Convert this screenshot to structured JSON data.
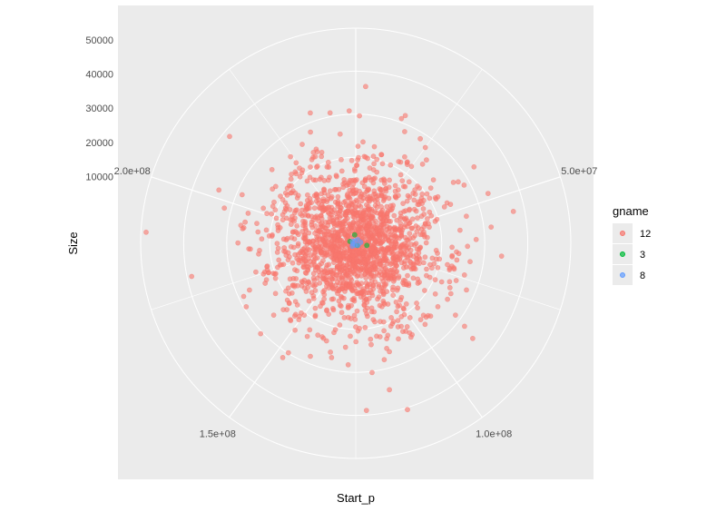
{
  "chart_data": {
    "type": "scatter",
    "coord": "polar",
    "xlabel": "Start_p",
    "ylabel": "Size",
    "theta_ticks": [
      "5.0e+07",
      "1.0e+08",
      "1.5e+08",
      "2.0e+08"
    ],
    "theta_tick_values": [
      50000000,
      100000000,
      150000000,
      200000000
    ],
    "theta_lim": [
      0,
      250000000
    ],
    "r_ticks": [
      "10000",
      "20000",
      "30000",
      "40000",
      "50000"
    ],
    "r_tick_values": [
      10000,
      20000,
      30000,
      40000,
      50000
    ],
    "r_lim": [
      0,
      63000
    ],
    "grid": true,
    "background": "#ebebeb",
    "point_alpha": 0.6,
    "legend": {
      "title": "gname",
      "position": "right",
      "entries": [
        {
          "label": "12",
          "color": "#f8766d"
        },
        {
          "label": "3",
          "color": "#00ba38"
        },
        {
          "label": "8",
          "color": "#619cff"
        }
      ]
    },
    "series": [
      {
        "name": "12",
        "color": "#f8766d",
        "points": [
          {
            "x": 2500000,
            "y": 46000
          },
          {
            "x": 22000000,
            "y": 36000
          },
          {
            "x": 28000000,
            "y": 32000
          },
          {
            "x": 47000000,
            "y": 30000
          },
          {
            "x": 41000000,
            "y": 35000
          },
          {
            "x": 8000000,
            "y": 26000
          },
          {
            "x": 237000000,
            "y": 25000
          },
          {
            "x": 52000000,
            "y": 22000
          },
          {
            "x": 69000000,
            "y": 30000
          },
          {
            "x": 68000000,
            "y": 28500
          },
          {
            "x": 80000000,
            "y": 30500
          },
          {
            "x": 116000000,
            "y": 44000
          },
          {
            "x": 113000000,
            "y": 51000
          },
          {
            "x": 119000000,
            "y": 30000
          },
          {
            "x": 125000000,
            "y": 24500
          },
          {
            "x": 171000000,
            "y": 29000
          },
          {
            "x": 195000000,
            "y": 33000
          },
          {
            "x": 171000000,
            "y": 34000
          },
          {
            "x": 157000000,
            "y": 28000
          },
          {
            "x": 167000000,
            "y": 21000
          },
          {
            "x": 185000000,
            "y": 21000
          },
          {
            "x": 206000000,
            "y": 23000
          },
          {
            "x": 215000000,
            "y": 18000
          },
          {
            "x": 40000000,
            "y": 12000
          },
          {
            "x": 60000000,
            "y": 15000
          },
          {
            "x": 95000000,
            "y": 18000
          },
          {
            "x": 145000000,
            "y": 20000
          },
          {
            "x": 230000000,
            "y": 15000
          }
        ]
      },
      {
        "name": "3",
        "color": "#00ba38",
        "points": [
          {
            "x": 245000000,
            "y": 2500
          },
          {
            "x": 70000000,
            "y": 3300
          },
          {
            "x": 200000000,
            "y": 1800
          },
          {
            "x": 100000000,
            "y": 800
          }
        ]
      },
      {
        "name": "8",
        "color": "#619cff",
        "points": [
          {
            "x": 20000000,
            "y": 1200
          },
          {
            "x": 90000000,
            "y": 900
          },
          {
            "x": 160000000,
            "y": 1300
          },
          {
            "x": 210000000,
            "y": 1100
          },
          {
            "x": 240000000,
            "y": 700
          },
          {
            "x": 130000000,
            "y": 600
          },
          {
            "x": 55000000,
            "y": 1500
          },
          {
            "x": 180000000,
            "y": 900
          }
        ]
      }
    ]
  }
}
